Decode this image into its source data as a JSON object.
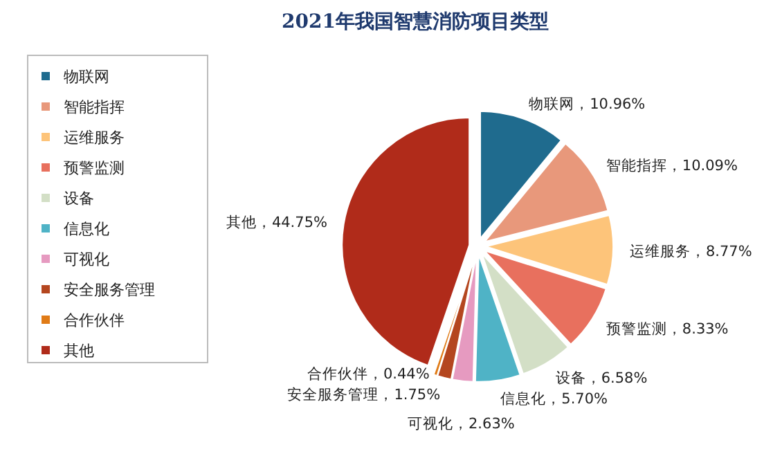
{
  "chart_data": {
    "type": "pie",
    "title": "2021年我国智慧消防项目类型",
    "categories": [
      "物联网",
      "智能指挥",
      "运维服务",
      "预警监测",
      "设备",
      "信息化",
      "可视化",
      "安全服务管理",
      "合作伙伴",
      "其他"
    ],
    "values": [
      10.96,
      10.09,
      8.77,
      8.33,
      6.58,
      5.7,
      2.63,
      1.75,
      0.44,
      44.75
    ],
    "colors": [
      "#1f6b8e",
      "#e8987b",
      "#fdc47a",
      "#e8705e",
      "#d3dfc6",
      "#4fb3c6",
      "#e69ac0",
      "#b4461f",
      "#e07b16",
      "#b02b1a"
    ],
    "value_labels": [
      "物联网，10.96%",
      "智能指挥，10.09%",
      "运维服务，8.77%",
      "预警监测，8.33%",
      "设备，6.58%",
      "信息化，5.70%",
      "可视化，2.63%",
      "安全服务管理，1.75%",
      "合作伙伴，0.44%",
      "其他，44.75%"
    ],
    "legend": "left"
  }
}
